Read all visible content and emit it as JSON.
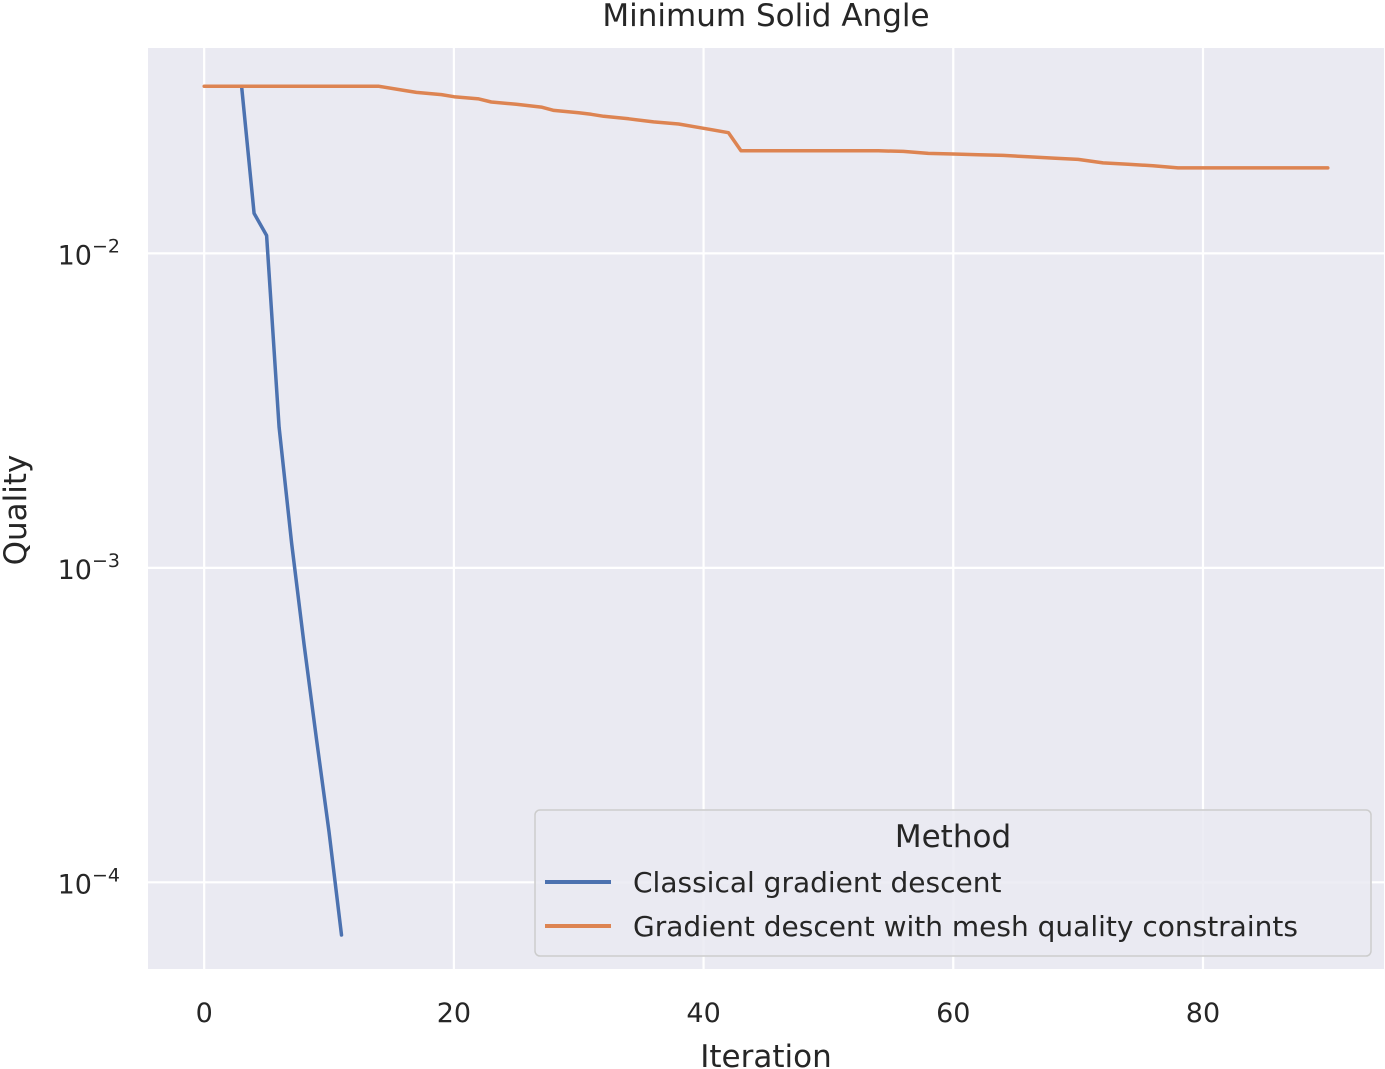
{
  "chart_data": {
    "type": "line",
    "title": "Minimum Solid Angle",
    "xlabel": "Iteration",
    "ylabel": "Quality",
    "xlim": [
      -4.5,
      94.5
    ],
    "ylim": [
      5.3e-05,
      0.045
    ],
    "yscale": "log",
    "x_ticks": [
      0,
      20,
      40,
      60,
      80
    ],
    "x_tick_labels": [
      "0",
      "20",
      "40",
      "60",
      "80"
    ],
    "y_ticks": [
      0.0001,
      0.001,
      0.01
    ],
    "y_tick_labels": [
      {
        "base": "10",
        "exp": "−4"
      },
      {
        "base": "10",
        "exp": "−3"
      },
      {
        "base": "10",
        "exp": "−2"
      }
    ],
    "grid": true,
    "legend": {
      "title": "Method",
      "placement": "lower right"
    },
    "series": [
      {
        "name": "Classical gradient descent",
        "color": "#4c72b0",
        "x": [
          3,
          4,
          5,
          6,
          7,
          8,
          9,
          10,
          11
        ],
        "y": [
          0.034,
          0.0134,
          0.0114,
          0.0028,
          0.0012,
          0.00057,
          0.000285,
          0.000145,
          6.8e-05
        ]
      },
      {
        "name": "Gradient descent with mesh quality constraints",
        "color": "#dd8452",
        "x": [
          0,
          2,
          4,
          6,
          8,
          10,
          12,
          14,
          16,
          17,
          19,
          20,
          22,
          23,
          25,
          27,
          28,
          30,
          31,
          32,
          34,
          36,
          38,
          40,
          42,
          43,
          46,
          50,
          54,
          56,
          58,
          60,
          62,
          64,
          66,
          68,
          70,
          72,
          74,
          76,
          78,
          80,
          84,
          88,
          90
        ],
        "y": [
          0.034,
          0.034,
          0.034,
          0.034,
          0.034,
          0.034,
          0.034,
          0.034,
          0.033,
          0.0325,
          0.032,
          0.0315,
          0.031,
          0.0303,
          0.0298,
          0.0292,
          0.0285,
          0.028,
          0.0277,
          0.0273,
          0.0268,
          0.0262,
          0.0258,
          0.025,
          0.0242,
          0.0212,
          0.0212,
          0.0212,
          0.0212,
          0.0211,
          0.0208,
          0.0207,
          0.0206,
          0.0205,
          0.0203,
          0.0201,
          0.0199,
          0.0194,
          0.0192,
          0.019,
          0.0187,
          0.0187,
          0.0187,
          0.0187,
          0.0187
        ]
      }
    ]
  }
}
